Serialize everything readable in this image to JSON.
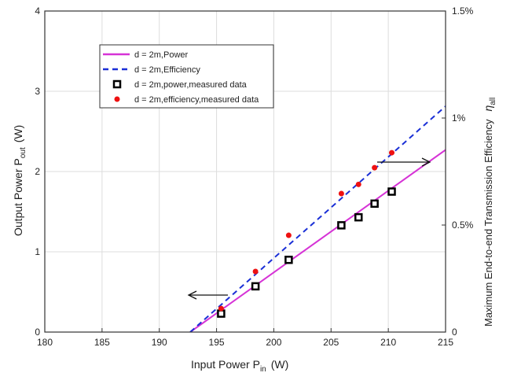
{
  "chart_data": {
    "type": "line",
    "title": "",
    "xlabel": "Input Power  P",
    "xlabel_sub": "in",
    "xlabel_unit": "(W)",
    "ylabel": "Output Power  P",
    "ylabel_sub": "out",
    "ylabel_unit": "(W)",
    "y2label": "Maximum End-to-end Transmission Efficiency",
    "y2label_symbol": "η",
    "y2label_sub": "all",
    "xlim": [
      180,
      215
    ],
    "ylim": [
      0,
      4
    ],
    "y2lim": [
      0,
      1.5
    ],
    "xticks": [
      "180",
      "185",
      "190",
      "195",
      "200",
      "205",
      "210",
      "215"
    ],
    "yticks": [
      "0",
      "1",
      "2",
      "3",
      "4"
    ],
    "y2ticks": [
      "0",
      "0.5%",
      "1%",
      "1.5%"
    ],
    "grid": true,
    "legend_position": "top-left",
    "series": [
      {
        "name": "d = 2m,Power",
        "kind": "line",
        "axis": "left",
        "color": "#d633d6",
        "x": [
          192.7,
          215
        ],
        "y": [
          0,
          2.27
        ]
      },
      {
        "name": "d = 2m,Efficiency",
        "kind": "dashed",
        "axis": "right",
        "color": "#1a2fd6",
        "x": [
          192.7,
          215
        ],
        "y": [
          0,
          1.055
        ]
      },
      {
        "name": "d = 2m,power,measured data",
        "kind": "square",
        "axis": "left",
        "color": "#000000",
        "x": [
          195.4,
          198.4,
          201.3,
          205.9,
          207.4,
          208.8,
          210.3
        ],
        "y": [
          0.23,
          0.57,
          0.9,
          1.33,
          1.43,
          1.6,
          1.75
        ]
      },
      {
        "name": "d = 2m,efficiency,measured data",
        "kind": "dot",
        "axis": "right",
        "color": "#ee1111",
        "x": [
          195.4,
          198.4,
          201.3,
          205.9,
          207.4,
          208.8,
          210.3
        ],
        "y": [
          0.11,
          0.283,
          0.452,
          0.647,
          0.69,
          0.768,
          0.838
        ]
      }
    ],
    "annotations": [
      {
        "type": "arrow",
        "direction": "left",
        "meaning": "power curve uses left axis"
      },
      {
        "type": "arrow",
        "direction": "right",
        "meaning": "efficiency curve uses right axis"
      }
    ]
  }
}
